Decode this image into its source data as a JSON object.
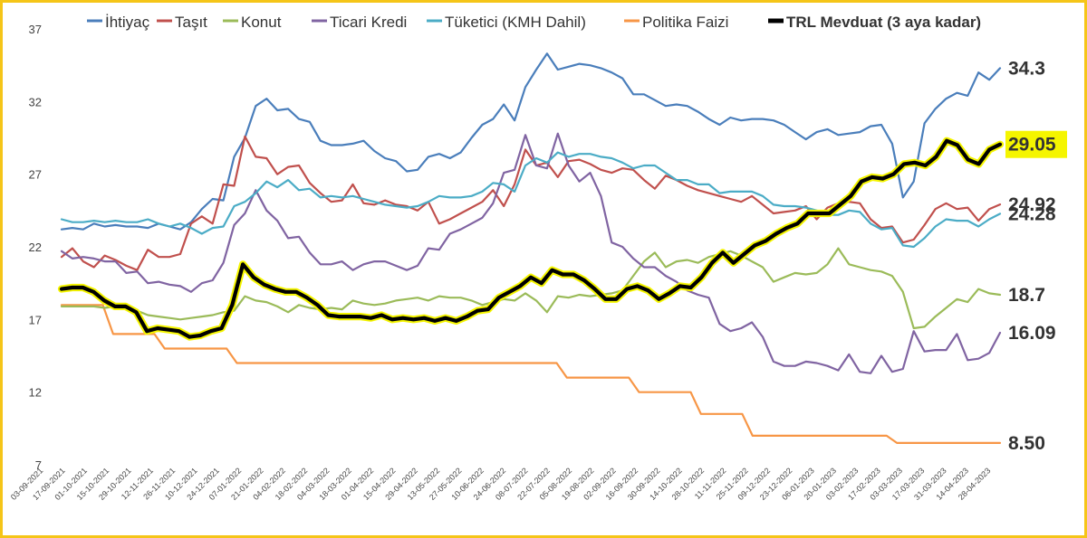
{
  "chart_data": {
    "type": "line",
    "title": "",
    "xlabel": "",
    "ylabel": "",
    "ylim": [
      7,
      37
    ],
    "yticks": [
      7,
      12,
      17,
      22,
      27,
      32,
      37
    ],
    "grid": false,
    "legend_position": "top",
    "x_tick_labels": [
      "03-09-2021",
      "17-09-2021",
      "01-10-2021",
      "15-10-2021",
      "29-10-2021",
      "12-11-2021",
      "26-11-2021",
      "10-12-2021",
      "24-12-2021",
      "07-01-2022",
      "21-01-2022",
      "04-02-2022",
      "18-02-2022",
      "04-03-2022",
      "18-03-2022",
      "01-04-2022",
      "15-04-2022",
      "29-04-2022",
      "13-05-2022",
      "27-05-2022",
      "10-06-2022",
      "24-06-2022",
      "08-07-2022",
      "22-07-2022",
      "05-08-2022",
      "19-08-2022",
      "02-09-2022",
      "16-09-2022",
      "30-09-2022",
      "14-10-2022",
      "28-10-2022",
      "11-11-2022",
      "25-11-2022",
      "09-12-2022",
      "23-12-2022",
      "06-01-2023",
      "20-01-2023",
      "03-02-2023",
      "17-02-2023",
      "03-03-2023",
      "17-03-2023",
      "31-03-2023",
      "14-04-2023",
      "28-04-2023"
    ],
    "series": [
      {
        "name": "İhtiyaç",
        "color": "#4a7ebb",
        "width": 2.2,
        "end_label": "34.3",
        "values": [
          23.2,
          23.3,
          23.2,
          23.6,
          23.4,
          23.5,
          23.4,
          23.4,
          23.3,
          23.6,
          23.4,
          23.2,
          23.7,
          24.6,
          25.3,
          25.2,
          28.2,
          29.5,
          31.7,
          32.2,
          31.4,
          31.5,
          30.8,
          30.6,
          29.3,
          29.0,
          29.0,
          29.1,
          29.3,
          28.6,
          28.1,
          27.9,
          27.2,
          27.3,
          28.2,
          28.4,
          28.1,
          28.5,
          29.5,
          30.4,
          30.8,
          31.8,
          30.7,
          33.0,
          34.2,
          35.3,
          34.2,
          34.4,
          34.6,
          34.5,
          34.3,
          34.0,
          33.6,
          32.5,
          32.5,
          32.1,
          31.7,
          31.8,
          31.7,
          31.3,
          30.8,
          30.4,
          30.9,
          30.7,
          30.8,
          30.8,
          30.7,
          30.4,
          29.9,
          29.4,
          29.9,
          30.1,
          29.7,
          29.8,
          29.9,
          30.3,
          30.4,
          29.1,
          25.4,
          26.5,
          30.5,
          31.5,
          32.2,
          32.6,
          32.4,
          34.0,
          33.5,
          34.3
        ]
      },
      {
        "name": "Taşıt",
        "color": "#c0504d",
        "width": 2.2,
        "end_label": "24.92",
        "values": [
          21.3,
          21.9,
          21.0,
          20.6,
          21.4,
          21.1,
          20.7,
          20.4,
          21.8,
          21.3,
          21.3,
          21.5,
          23.6,
          24.1,
          23.6,
          26.3,
          26.2,
          29.6,
          28.2,
          28.1,
          27.0,
          27.5,
          27.6,
          26.4,
          25.7,
          25.1,
          25.2,
          26.3,
          25.0,
          24.9,
          25.2,
          24.9,
          24.8,
          24.5,
          25.1,
          23.6,
          23.9,
          24.3,
          24.7,
          25.1,
          25.9,
          24.8,
          26.3,
          28.7,
          27.6,
          27.8,
          26.8,
          27.9,
          28.0,
          27.7,
          27.3,
          27.1,
          27.4,
          27.3,
          26.6,
          26.0,
          26.9,
          26.6,
          26.2,
          25.9,
          25.7,
          25.5,
          25.3,
          25.1,
          25.5,
          24.9,
          24.3,
          24.4,
          24.5,
          24.8,
          23.9,
          24.7,
          25.0,
          25.1,
          25.0,
          23.9,
          23.3,
          23.4,
          22.3,
          22.5,
          23.5,
          24.6,
          25.0,
          24.6,
          24.7,
          23.8,
          24.6,
          24.92
        ]
      },
      {
        "name": "Konut",
        "color": "#9bbb59",
        "width": 2.2,
        "end_label": "18.7",
        "values": [
          17.9,
          17.9,
          17.9,
          17.9,
          17.8,
          17.9,
          17.9,
          17.6,
          17.3,
          17.2,
          17.1,
          17.0,
          17.1,
          17.2,
          17.3,
          17.5,
          17.6,
          18.6,
          18.3,
          18.2,
          17.9,
          17.5,
          18.0,
          17.8,
          17.7,
          17.8,
          17.7,
          18.3,
          18.1,
          18.0,
          18.1,
          18.3,
          18.4,
          18.5,
          18.3,
          18.6,
          18.5,
          18.5,
          18.3,
          18.0,
          18.2,
          18.4,
          18.3,
          18.8,
          18.3,
          17.5,
          18.6,
          18.5,
          18.7,
          18.6,
          18.7,
          18.8,
          19.0,
          20.0,
          21.0,
          21.6,
          20.6,
          21.0,
          21.1,
          20.9,
          21.3,
          21.5,
          21.7,
          21.4,
          21.0,
          20.6,
          19.6,
          19.9,
          20.2,
          20.1,
          20.2,
          20.8,
          21.9,
          20.8,
          20.6,
          20.4,
          20.3,
          20.0,
          18.9,
          16.4,
          16.5,
          17.2,
          17.8,
          18.4,
          18.2,
          19.1,
          18.8,
          18.7
        ]
      },
      {
        "name": "Ticari Kredi",
        "color": "#8064a2",
        "width": 2.2,
        "end_label": "16.09",
        "values": [
          21.7,
          21.2,
          21.3,
          21.2,
          21.0,
          21.0,
          20.2,
          20.3,
          19.5,
          19.6,
          19.4,
          19.3,
          18.9,
          19.5,
          19.7,
          20.9,
          23.5,
          24.3,
          25.9,
          24.5,
          23.8,
          22.6,
          22.7,
          21.6,
          20.8,
          20.8,
          21.0,
          20.4,
          20.8,
          21.0,
          21.0,
          20.7,
          20.4,
          20.7,
          21.9,
          21.8,
          22.9,
          23.2,
          23.6,
          24.0,
          25.0,
          27.1,
          27.3,
          29.7,
          27.6,
          27.4,
          29.8,
          27.6,
          26.5,
          27.1,
          25.5,
          22.3,
          22.0,
          21.2,
          20.6,
          20.6,
          20.0,
          19.6,
          19.0,
          18.7,
          18.5,
          16.7,
          16.2,
          16.4,
          16.8,
          15.8,
          14.1,
          13.8,
          13.8,
          14.1,
          14.0,
          13.8,
          13.5,
          14.6,
          13.4,
          13.3,
          14.5,
          13.4,
          13.6,
          16.2,
          14.8,
          14.9,
          14.9,
          16.0,
          14.2,
          14.3,
          14.7,
          16.09
        ]
      },
      {
        "name": "Tüketici (KMH Dahil)",
        "color": "#4bacc6",
        "width": 2.2,
        "end_label": "24.28",
        "values": [
          23.9,
          23.7,
          23.7,
          23.8,
          23.7,
          23.8,
          23.7,
          23.7,
          23.9,
          23.6,
          23.4,
          23.6,
          23.3,
          22.9,
          23.3,
          23.4,
          24.8,
          25.1,
          25.7,
          26.5,
          26.1,
          26.6,
          25.9,
          26.0,
          25.4,
          25.5,
          25.4,
          25.5,
          25.3,
          25.1,
          24.9,
          24.8,
          24.7,
          24.8,
          25.1,
          25.5,
          25.4,
          25.4,
          25.5,
          25.8,
          26.4,
          26.3,
          25.8,
          27.6,
          28.1,
          27.8,
          28.5,
          28.2,
          28.4,
          28.4,
          28.2,
          28.1,
          27.8,
          27.4,
          27.6,
          27.6,
          27.1,
          26.6,
          26.6,
          26.3,
          26.3,
          25.7,
          25.8,
          25.8,
          25.8,
          25.5,
          24.9,
          24.8,
          24.8,
          24.7,
          24.5,
          24.2,
          24.2,
          24.5,
          24.4,
          23.6,
          23.2,
          23.3,
          22.1,
          22.0,
          22.6,
          23.4,
          23.9,
          23.8,
          23.8,
          23.4,
          23.9,
          24.28
        ]
      },
      {
        "name": "Politika Faizi",
        "color": "#f79646",
        "width": 2.2,
        "end_label": "8.50",
        "values": [
          18,
          18,
          18,
          18,
          18,
          16,
          16,
          16,
          16,
          16,
          15,
          15,
          15,
          15,
          15,
          15,
          15,
          14,
          14,
          14,
          14,
          14,
          14,
          14,
          14,
          14,
          14,
          14,
          14,
          14,
          14,
          14,
          14,
          14,
          14,
          14,
          14,
          14,
          14,
          14,
          14,
          14,
          14,
          14,
          14,
          14,
          14,
          14,
          14,
          13,
          13,
          13,
          13,
          13,
          13,
          13,
          12,
          12,
          12,
          12,
          12,
          12,
          10.5,
          10.5,
          10.5,
          10.5,
          10.5,
          9,
          9,
          9,
          9,
          9,
          9,
          9,
          9,
          9,
          9,
          9,
          9,
          9,
          9,
          8.5,
          8.5,
          8.5,
          8.5,
          8.5,
          8.5,
          8.5,
          8.5,
          8.5,
          8.5,
          8.5
        ]
      },
      {
        "name": "TRL Mevduat (3 aya kadar)",
        "color": "#000000",
        "width": 4.2,
        "highlight": "#f5f500",
        "end_label": "29.05",
        "end_label_bg": "#f5f500",
        "values": [
          19.1,
          19.2,
          19.2,
          18.9,
          18.3,
          17.9,
          17.9,
          17.5,
          16.2,
          16.4,
          16.3,
          16.2,
          15.8,
          15.9,
          16.2,
          16.4,
          18.0,
          20.8,
          19.9,
          19.4,
          19.1,
          18.9,
          18.9,
          18.5,
          18.0,
          17.3,
          17.2,
          17.2,
          17.2,
          17.1,
          17.3,
          17.0,
          17.1,
          17.0,
          17.1,
          16.9,
          17.1,
          16.9,
          17.2,
          17.6,
          17.7,
          18.5,
          18.9,
          19.3,
          19.9,
          19.5,
          20.4,
          20.1,
          20.1,
          19.7,
          19.1,
          18.4,
          18.4,
          19.1,
          19.3,
          19.0,
          18.4,
          18.8,
          19.3,
          19.2,
          19.9,
          20.9,
          21.6,
          20.9,
          21.5,
          22.1,
          22.4,
          22.9,
          23.3,
          23.6,
          24.3,
          24.3,
          24.3,
          24.9,
          25.5,
          26.5,
          26.8,
          26.7,
          27.0,
          27.7,
          27.8,
          27.6,
          28.2,
          29.3,
          29.0,
          28.0,
          27.7,
          28.7,
          29.05
        ]
      }
    ]
  }
}
